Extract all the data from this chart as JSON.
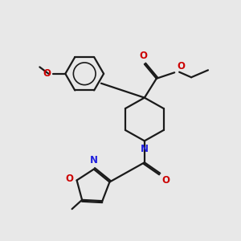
{
  "bg_color": "#e8e8e8",
  "bond_color": "#1a1a1a",
  "N_color": "#2020dd",
  "O_color": "#cc0000",
  "lw": 1.6,
  "figsize": [
    3.0,
    3.0
  ],
  "dpi": 100,
  "xlim": [
    0.5,
    10.5
  ],
  "ylim": [
    0.8,
    9.8
  ]
}
